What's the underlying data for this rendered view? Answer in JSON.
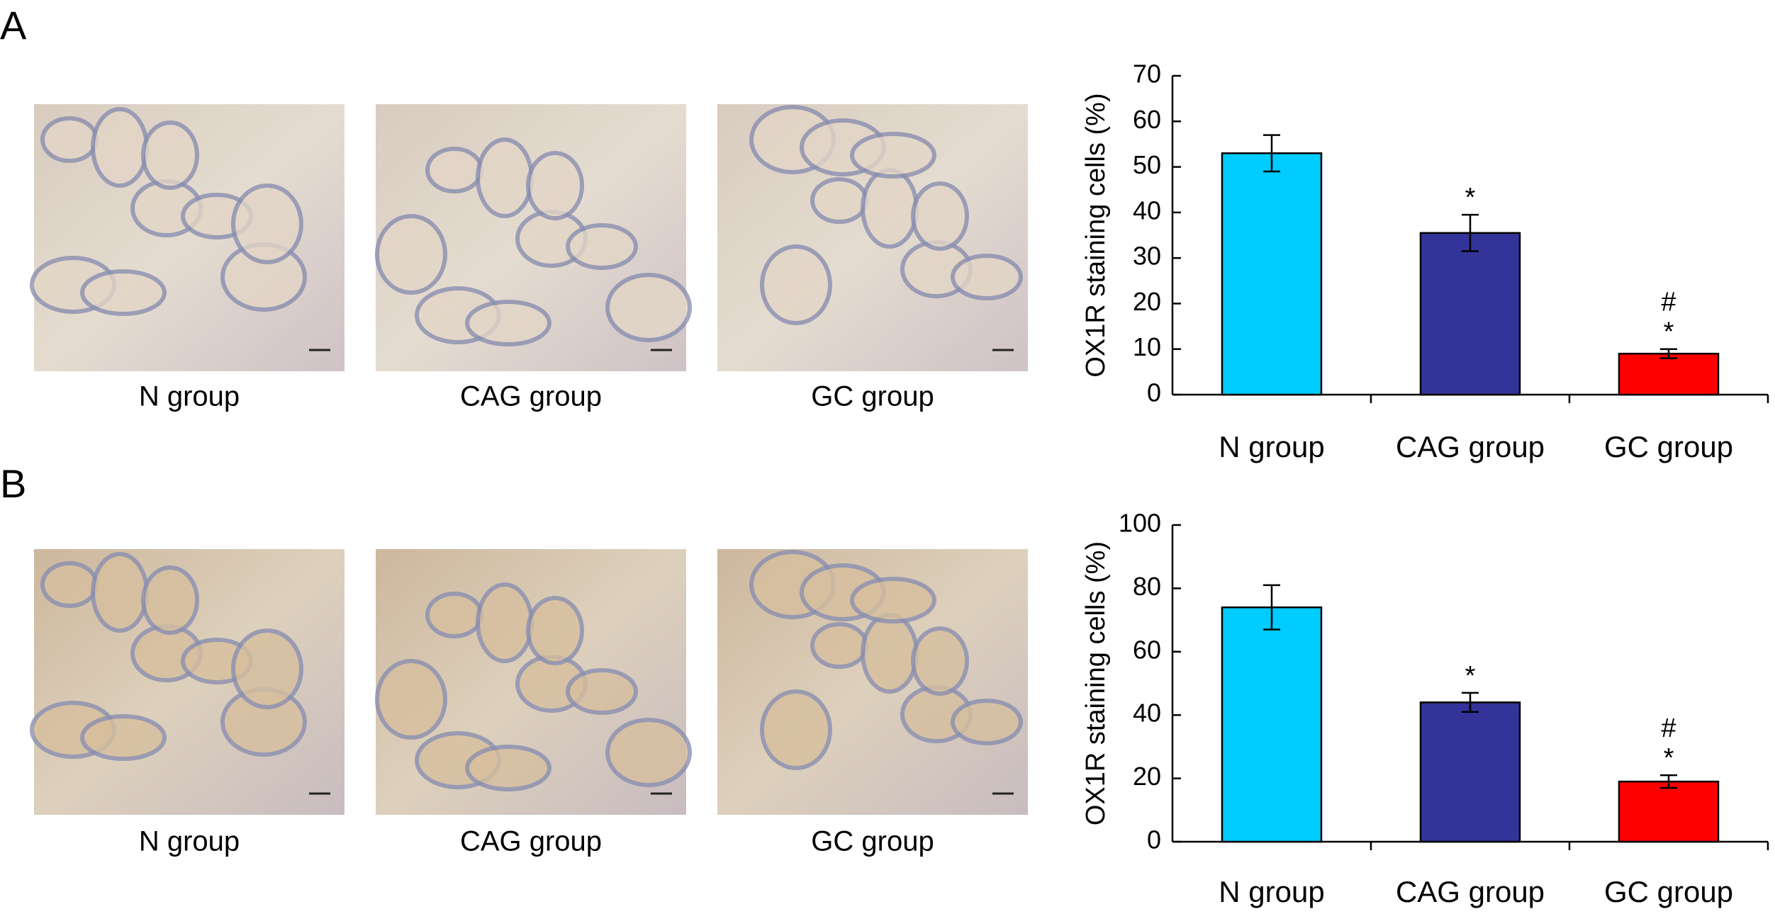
{
  "panels": [
    {
      "label": "A",
      "captions": [
        "N group",
        "CAG group",
        "GC group"
      ]
    },
    {
      "label": "B",
      "captions": [
        "N group",
        "CAG group",
        "GC group"
      ]
    }
  ],
  "chart_data": [
    {
      "type": "bar",
      "y_label": "OX1R staining cells (%)",
      "categories": [
        "N group",
        "CAG group",
        "GC group"
      ],
      "values": [
        53,
        35.5,
        9
      ],
      "errors": [
        4,
        4,
        1
      ],
      "colors": [
        "#00ccff",
        "#333399",
        "#ff0000"
      ],
      "significance": [
        null,
        [
          "*"
        ],
        [
          "#",
          "*"
        ]
      ],
      "ylim": [
        0,
        70
      ],
      "yticks": [
        0,
        10,
        20,
        30,
        40,
        50,
        60,
        70
      ],
      "grid": false
    },
    {
      "type": "bar",
      "y_label": "OX1R staining cells (%)",
      "categories": [
        "N group",
        "CAG group",
        "GC group"
      ],
      "values": [
        74,
        44,
        19
      ],
      "errors": [
        7,
        3,
        2
      ],
      "colors": [
        "#00ccff",
        "#333399",
        "#ff0000"
      ],
      "significance": [
        null,
        [
          "*"
        ],
        [
          "#",
          "*"
        ]
      ],
      "ylim": [
        0,
        100
      ],
      "yticks": [
        0,
        20,
        40,
        60,
        80,
        100
      ],
      "grid": false
    }
  ]
}
